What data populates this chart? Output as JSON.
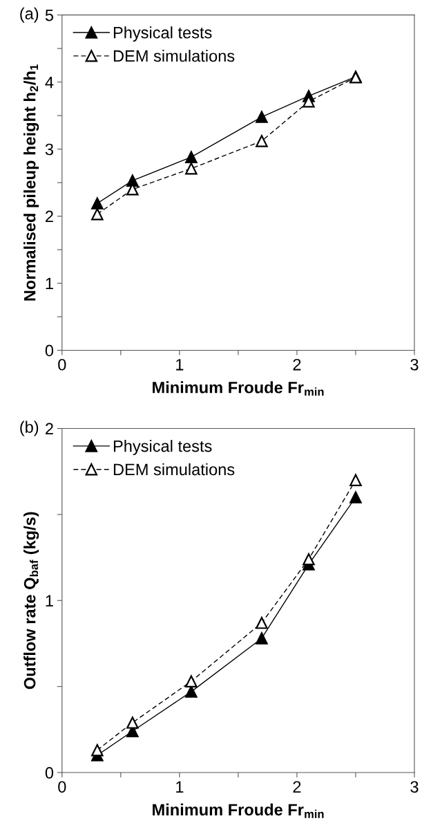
{
  "chart_data": [
    {
      "type": "line",
      "annotations": [
        "(a)"
      ],
      "xlabel": "Minimum Froude Fr$_{min}$",
      "ylabel": "Normalised pileup height h$_{2}$/h$_{1}$",
      "x": [
        0.3,
        0.6,
        1.1,
        1.7,
        2.1,
        2.5
      ],
      "series": [
        {
          "name": "Physical tests",
          "color": "#000000",
          "values": [
            2.19,
            2.53,
            2.88,
            3.48,
            3.79,
            4.08
          ],
          "marker": "triangle",
          "line_style": "solid"
        },
        {
          "name": "DEM simulations",
          "color": "#000000",
          "values": [
            2.03,
            2.4,
            2.71,
            3.12,
            3.71,
            4.07
          ],
          "marker": "triangle",
          "line_style": "dashed"
        }
      ],
      "xlim": [
        0,
        3
      ],
      "ylim": [
        0,
        5
      ],
      "xticks": [
        0,
        {
          "value": 0.5,
          "label": null
        },
        1,
        {
          "value": 1.5,
          "label": null
        },
        2,
        {
          "value": 2.5,
          "label": null
        },
        3
      ],
      "yticks": [
        0,
        {
          "value": 0.5,
          "label": null
        },
        1,
        {
          "value": 1.5,
          "label": null
        },
        2,
        {
          "value": 2.5,
          "label": null
        },
        3,
        {
          "value": 3.5,
          "label": null
        },
        4,
        {
          "value": 4.5,
          "label": null
        },
        5
      ],
      "grid": false,
      "legend": "top left"
    },
    {
      "type": "line",
      "annotations": [
        "(b)"
      ],
      "xlabel": "Minimum Froude Fr$_{min}$",
      "ylabel": "Outflow rate Q$_{baf}$ (kg/s)",
      "x": [
        0.3,
        0.6,
        1.1,
        1.7,
        2.1,
        2.5
      ],
      "series": [
        {
          "name": "Physical tests",
          "color": "#000000",
          "values": [
            0.1,
            0.24,
            0.47,
            0.78,
            1.21,
            1.6
          ],
          "marker": "triangle",
          "line_style": "solid"
        },
        {
          "name": "DEM simulations",
          "color": "#000000",
          "values": [
            0.13,
            0.29,
            0.53,
            0.87,
            1.24,
            1.7
          ],
          "marker": "triangle",
          "line_style": "dashed"
        }
      ],
      "xlim": [
        0,
        3
      ],
      "ylim": [
        0,
        2
      ],
      "xticks": [
        0,
        {
          "value": 0.5,
          "label": null
        },
        1,
        {
          "value": 1.5,
          "label": null
        },
        2,
        {
          "value": 2.5,
          "label": null
        },
        3
      ],
      "yticks": [
        0,
        {
          "value": 0.5,
          "label": null
        },
        1,
        {
          "value": 1.5,
          "label": null
        },
        2
      ],
      "grid": false,
      "legend": "top left"
    }
  ]
}
